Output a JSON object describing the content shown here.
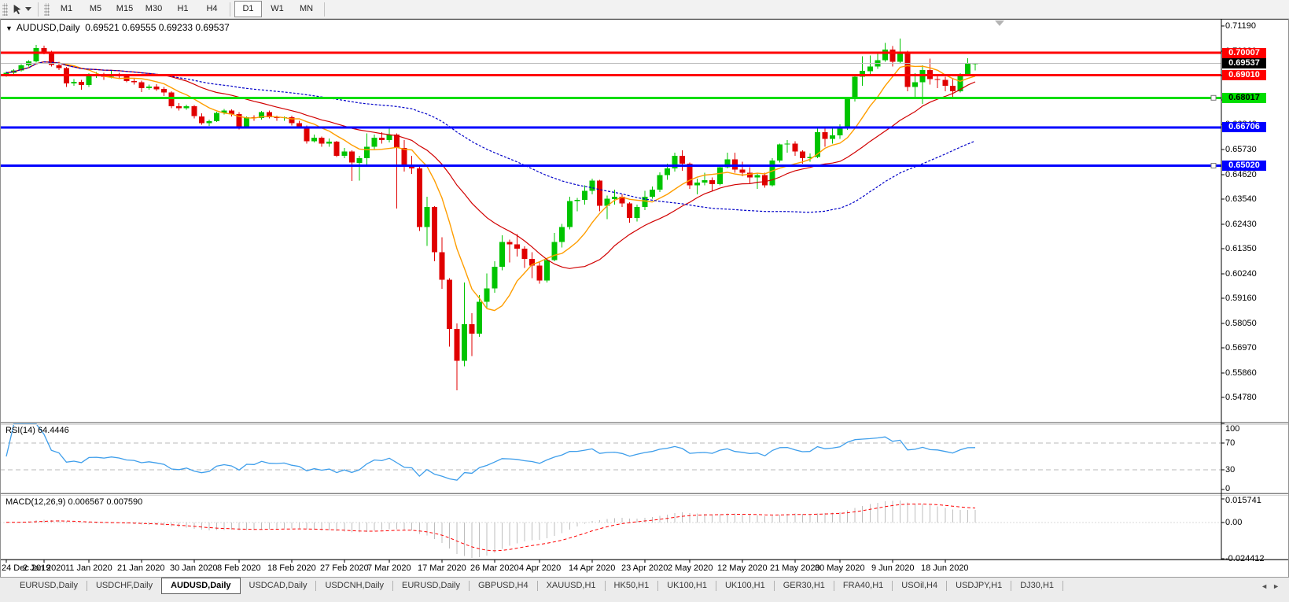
{
  "toolbar": {
    "timeframes": [
      {
        "label": "M1"
      },
      {
        "label": "M5"
      },
      {
        "label": "M15"
      },
      {
        "label": "M30"
      },
      {
        "label": "H1"
      },
      {
        "label": "H4"
      },
      {
        "label": "D1"
      },
      {
        "label": "W1"
      },
      {
        "label": "MN"
      }
    ],
    "active_timeframe": "D1"
  },
  "chart": {
    "title_symbol": "AUDUSD,Daily",
    "title_ohlc": "0.69521 0.69555 0.69233 0.69537",
    "menu_icon": "▼",
    "up_color": "#00C400",
    "down_color": "#E00000",
    "current_price": {
      "value": 0.69537,
      "label": "0.69537",
      "box_color": "#000000",
      "text_color": "#FFFFFF",
      "line_color": "#BBBBBB"
    },
    "hlines": [
      {
        "value": 0.70007,
        "label": "0.70007",
        "color": "#FF0000",
        "text_color": "#FFFFFF",
        "thickness": 3,
        "handle": false
      },
      {
        "value": 0.6901,
        "label": "0.69010",
        "color": "#FF0000",
        "text_color": "#FFFFFF",
        "thickness": 3,
        "handle": false
      },
      {
        "value": 0.68017,
        "label": "0.68017",
        "color": "#00DD00",
        "text_color": "#000000",
        "thickness": 3,
        "handle": true
      },
      {
        "value": 0.66706,
        "label": "0.66706",
        "color": "#0000FF",
        "text_color": "#FFFFFF",
        "thickness": 3,
        "handle": false
      },
      {
        "value": 0.6502,
        "label": "0.65020",
        "color": "#0000FF",
        "text_color": "#FFFFFF",
        "thickness": 3,
        "handle": true
      }
    ],
    "price_ticks": [
      {
        "value": 0.7119,
        "label": "0.71190"
      },
      {
        "value": 0.7008,
        "label": "0.70080"
      },
      {
        "value": 0.69,
        "label": "0.69000"
      },
      {
        "value": 0.6792,
        "label": "0.67920"
      },
      {
        "value": 0.6684,
        "label": "0.66840"
      },
      {
        "value": 0.6573,
        "label": "0.65730"
      },
      {
        "value": 0.6462,
        "label": "0.64620"
      },
      {
        "value": 0.6354,
        "label": "0.63540"
      },
      {
        "value": 0.6243,
        "label": "0.62430"
      },
      {
        "value": 0.6135,
        "label": "0.61350"
      },
      {
        "value": 0.6024,
        "label": "0.60240"
      },
      {
        "value": 0.5916,
        "label": "0.59160"
      },
      {
        "value": 0.5805,
        "label": "0.58050"
      },
      {
        "value": 0.5697,
        "label": "0.56970"
      },
      {
        "value": 0.5586,
        "label": "0.55860"
      },
      {
        "value": 0.5478,
        "label": "0.54780"
      }
    ]
  },
  "chart_data": {
    "type": "candlestick",
    "symbol": "AUDUSD",
    "timeframe": "Daily",
    "price_range": {
      "axis_top": 0.7119,
      "axis_bottom": 0.5478
    },
    "moving_averages": [
      {
        "name": "fast",
        "period": 8,
        "color": "#FF9E00",
        "dash": ""
      },
      {
        "name": "medium",
        "period": 21,
        "color": "#D10000",
        "dash": ""
      },
      {
        "name": "slow",
        "period": 55,
        "color": "#0000C8",
        "dash": "3 2"
      }
    ],
    "date_ticks": [
      {
        "bar": 0,
        "label": "24 Dec 2019"
      },
      {
        "bar": 5,
        "label": "2 Jan 2020"
      },
      {
        "bar": 11,
        "label": "11 Jan 2020"
      },
      {
        "bar": 18,
        "label": "21 Jan 2020"
      },
      {
        "bar": 25,
        "label": "30 Jan 2020"
      },
      {
        "bar": 31,
        "label": "8 Feb 2020"
      },
      {
        "bar": 38,
        "label": "18 Feb 2020"
      },
      {
        "bar": 45,
        "label": "27 Feb 2020"
      },
      {
        "bar": 51,
        "label": "7 Mar 2020"
      },
      {
        "bar": 58,
        "label": "17 Mar 2020"
      },
      {
        "bar": 65,
        "label": "26 Mar 2020"
      },
      {
        "bar": 71,
        "label": "4 Apr 2020"
      },
      {
        "bar": 78,
        "label": "14 Apr 2020"
      },
      {
        "bar": 85,
        "label": "23 Apr 2020"
      },
      {
        "bar": 91,
        "label": "2 May 2020"
      },
      {
        "bar": 98,
        "label": "12 May 2020"
      },
      {
        "bar": 105,
        "label": "21 May 2020"
      },
      {
        "bar": 111,
        "label": "30 May 2020"
      },
      {
        "bar": 118,
        "label": "9 Jun 2020"
      },
      {
        "bar": 125,
        "label": "18 Jun 2020"
      }
    ],
    "candles": [
      [
        0.69,
        0.6917,
        0.6895,
        0.6912
      ],
      [
        0.6912,
        0.6928,
        0.6905,
        0.6922
      ],
      [
        0.6922,
        0.695,
        0.6918,
        0.6945
      ],
      [
        0.6945,
        0.6968,
        0.694,
        0.6962
      ],
      [
        0.6962,
        0.7035,
        0.6958,
        0.7021
      ],
      [
        0.7021,
        0.7032,
        0.6993,
        0.7
      ],
      [
        0.7,
        0.701,
        0.694,
        0.6946
      ],
      [
        0.6946,
        0.696,
        0.6925,
        0.6933
      ],
      [
        0.6933,
        0.6938,
        0.6849,
        0.6866
      ],
      [
        0.6866,
        0.6885,
        0.6855,
        0.6873
      ],
      [
        0.6873,
        0.688,
        0.6838,
        0.6858
      ],
      [
        0.6858,
        0.691,
        0.685,
        0.6901
      ],
      [
        0.6901,
        0.6915,
        0.689,
        0.6903
      ],
      [
        0.6903,
        0.6912,
        0.688,
        0.6895
      ],
      [
        0.6895,
        0.692,
        0.6888,
        0.6906
      ],
      [
        0.6906,
        0.6913,
        0.6885,
        0.6896
      ],
      [
        0.6896,
        0.6905,
        0.687,
        0.6875
      ],
      [
        0.6875,
        0.6888,
        0.686,
        0.687
      ],
      [
        0.687,
        0.6878,
        0.6827,
        0.6845
      ],
      [
        0.6845,
        0.686,
        0.6838,
        0.6852
      ],
      [
        0.6852,
        0.6862,
        0.6832,
        0.684
      ],
      [
        0.684,
        0.685,
        0.681,
        0.6825
      ],
      [
        0.6825,
        0.683,
        0.6755,
        0.6765
      ],
      [
        0.6765,
        0.6778,
        0.6745,
        0.6755
      ],
      [
        0.6755,
        0.6772,
        0.6748,
        0.6765
      ],
      [
        0.6765,
        0.677,
        0.671,
        0.672
      ],
      [
        0.672,
        0.6733,
        0.6682,
        0.669
      ],
      [
        0.669,
        0.6705,
        0.6678,
        0.6698
      ],
      [
        0.6698,
        0.674,
        0.6695,
        0.6735
      ],
      [
        0.6735,
        0.6752,
        0.6728,
        0.6745
      ],
      [
        0.6745,
        0.675,
        0.672,
        0.673
      ],
      [
        0.673,
        0.6738,
        0.6662,
        0.667
      ],
      [
        0.667,
        0.672,
        0.6665,
        0.6715
      ],
      [
        0.6715,
        0.6725,
        0.67,
        0.6712
      ],
      [
        0.6712,
        0.6743,
        0.6705,
        0.6738
      ],
      [
        0.6738,
        0.6745,
        0.671,
        0.6715
      ],
      [
        0.6715,
        0.6722,
        0.67,
        0.6712
      ],
      [
        0.6712,
        0.672,
        0.67,
        0.6716
      ],
      [
        0.6716,
        0.6722,
        0.668,
        0.669
      ],
      [
        0.669,
        0.67,
        0.6668,
        0.6675
      ],
      [
        0.6675,
        0.668,
        0.66,
        0.661
      ],
      [
        0.661,
        0.664,
        0.6605,
        0.6625
      ],
      [
        0.6625,
        0.663,
        0.6585,
        0.66
      ],
      [
        0.66,
        0.6622,
        0.6585,
        0.6608
      ],
      [
        0.6608,
        0.6612,
        0.654,
        0.6545
      ],
      [
        0.6545,
        0.658,
        0.6535,
        0.6565
      ],
      [
        0.6565,
        0.657,
        0.6434,
        0.6515
      ],
      [
        0.6515,
        0.6545,
        0.6435,
        0.6535
      ],
      [
        0.6535,
        0.6645,
        0.6505,
        0.6585
      ],
      [
        0.6585,
        0.664,
        0.6575,
        0.6625
      ],
      [
        0.6625,
        0.665,
        0.66,
        0.6615
      ],
      [
        0.6615,
        0.6665,
        0.6605,
        0.664
      ],
      [
        0.664,
        0.6645,
        0.6313,
        0.658
      ],
      [
        0.658,
        0.6615,
        0.6475,
        0.65
      ],
      [
        0.65,
        0.6545,
        0.6465,
        0.649
      ],
      [
        0.649,
        0.65,
        0.6213,
        0.623
      ],
      [
        0.623,
        0.6365,
        0.6148,
        0.632
      ],
      [
        0.632,
        0.6322,
        0.608,
        0.612
      ],
      [
        0.612,
        0.6185,
        0.5958,
        0.5998
      ],
      [
        0.5998,
        0.6005,
        0.5702,
        0.578
      ],
      [
        0.578,
        0.5805,
        0.551,
        0.564
      ],
      [
        0.564,
        0.5986,
        0.5615,
        0.5802
      ],
      [
        0.5802,
        0.585,
        0.566,
        0.576
      ],
      [
        0.576,
        0.593,
        0.5745,
        0.59
      ],
      [
        0.59,
        0.6025,
        0.587,
        0.596
      ],
      [
        0.596,
        0.608,
        0.594,
        0.6055
      ],
      [
        0.6055,
        0.6195,
        0.604,
        0.6165
      ],
      [
        0.6165,
        0.6175,
        0.6075,
        0.6155
      ],
      [
        0.6155,
        0.62,
        0.61,
        0.6135
      ],
      [
        0.6135,
        0.6145,
        0.605,
        0.609
      ],
      [
        0.609,
        0.612,
        0.6005,
        0.606
      ],
      [
        0.606,
        0.6075,
        0.598,
        0.5995
      ],
      [
        0.5995,
        0.6095,
        0.5985,
        0.6085
      ],
      [
        0.6085,
        0.6205,
        0.608,
        0.6165
      ],
      [
        0.6165,
        0.6245,
        0.614,
        0.623
      ],
      [
        0.623,
        0.6365,
        0.622,
        0.6345
      ],
      [
        0.6345,
        0.636,
        0.63,
        0.635
      ],
      [
        0.635,
        0.6415,
        0.633,
        0.639
      ],
      [
        0.639,
        0.6445,
        0.6375,
        0.6435
      ],
      [
        0.6435,
        0.644,
        0.63,
        0.6325
      ],
      [
        0.6325,
        0.637,
        0.6265,
        0.6355
      ],
      [
        0.6355,
        0.6395,
        0.633,
        0.6365
      ],
      [
        0.6365,
        0.6375,
        0.632,
        0.6335
      ],
      [
        0.6335,
        0.634,
        0.625,
        0.627
      ],
      [
        0.627,
        0.633,
        0.6255,
        0.632
      ],
      [
        0.632,
        0.639,
        0.6305,
        0.6365
      ],
      [
        0.6365,
        0.641,
        0.6355,
        0.6395
      ],
      [
        0.6395,
        0.6472,
        0.6385,
        0.646
      ],
      [
        0.646,
        0.651,
        0.644,
        0.649
      ],
      [
        0.649,
        0.656,
        0.6475,
        0.6545
      ],
      [
        0.6545,
        0.657,
        0.648,
        0.651
      ],
      [
        0.651,
        0.6515,
        0.64,
        0.6415
      ],
      [
        0.6415,
        0.6445,
        0.6375,
        0.6428
      ],
      [
        0.6428,
        0.647,
        0.6415,
        0.6437
      ],
      [
        0.6437,
        0.645,
        0.639,
        0.642
      ],
      [
        0.642,
        0.6505,
        0.6415,
        0.6495
      ],
      [
        0.6495,
        0.656,
        0.649,
        0.653
      ],
      [
        0.653,
        0.656,
        0.647,
        0.6485
      ],
      [
        0.6485,
        0.652,
        0.6455,
        0.647
      ],
      [
        0.647,
        0.6495,
        0.642,
        0.645
      ],
      [
        0.645,
        0.647,
        0.64,
        0.646
      ],
      [
        0.646,
        0.647,
        0.6405,
        0.6415
      ],
      [
        0.6415,
        0.6535,
        0.641,
        0.6525
      ],
      [
        0.6525,
        0.66,
        0.6515,
        0.6595
      ],
      [
        0.6595,
        0.6615,
        0.656,
        0.66
      ],
      [
        0.66,
        0.661,
        0.6545,
        0.6565
      ],
      [
        0.6565,
        0.657,
        0.651,
        0.6535
      ],
      [
        0.6535,
        0.6555,
        0.652,
        0.654
      ],
      [
        0.654,
        0.6675,
        0.6535,
        0.665
      ],
      [
        0.665,
        0.6665,
        0.6585,
        0.662
      ],
      [
        0.662,
        0.6665,
        0.66,
        0.6635
      ],
      [
        0.6635,
        0.6685,
        0.662,
        0.6665
      ],
      [
        0.6665,
        0.68,
        0.666,
        0.6795
      ],
      [
        0.6795,
        0.69,
        0.6785,
        0.6895
      ],
      [
        0.6895,
        0.6985,
        0.6855,
        0.692
      ],
      [
        0.692,
        0.6988,
        0.6905,
        0.694
      ],
      [
        0.694,
        0.6995,
        0.693,
        0.6968
      ],
      [
        0.6968,
        0.7045,
        0.696,
        0.7015
      ],
      [
        0.7015,
        0.703,
        0.694,
        0.696
      ],
      [
        0.696,
        0.7064,
        0.6955,
        0.7
      ],
      [
        0.7,
        0.701,
        0.683,
        0.685
      ],
      [
        0.685,
        0.691,
        0.68,
        0.687
      ],
      [
        0.687,
        0.6945,
        0.6775,
        0.6925
      ],
      [
        0.6925,
        0.6975,
        0.686,
        0.6885
      ],
      [
        0.6885,
        0.6905,
        0.6845,
        0.688
      ],
      [
        0.688,
        0.6895,
        0.683,
        0.6855
      ],
      [
        0.6855,
        0.6885,
        0.68,
        0.683
      ],
      [
        0.683,
        0.691,
        0.6825,
        0.69
      ],
      [
        0.69,
        0.6977,
        0.6896,
        0.6952
      ],
      [
        0.69521,
        0.69555,
        0.69233,
        0.69537
      ]
    ]
  },
  "rsi": {
    "label": "RSI(14) 64.4446",
    "period": 14,
    "line_color": "#3E9EEB",
    "levels": [
      {
        "value": 100,
        "label": "100",
        "dashed": false
      },
      {
        "value": 70,
        "label": "70",
        "dashed": true
      },
      {
        "value": 30,
        "label": "30",
        "dashed": true
      },
      {
        "value": 0,
        "label": "0",
        "dashed": false
      }
    ]
  },
  "macd": {
    "label": "MACD(12,26,9) 0.006567 0.007590",
    "fast": 12,
    "slow": 26,
    "signal": 9,
    "histogram_color": "#BDBDBD",
    "signal_color": "#FF0000",
    "axis": [
      {
        "value": 0.015741,
        "label": "0.015741"
      },
      {
        "value": 0.0,
        "label": "0.00"
      },
      {
        "value": -0.024412,
        "label": "-0.024412"
      }
    ]
  },
  "tabs": {
    "active_index": 2,
    "items": [
      {
        "label": "EURUSD,Daily"
      },
      {
        "label": "USDCHF,Daily"
      },
      {
        "label": "AUDUSD,Daily"
      },
      {
        "label": "USDCAD,Daily"
      },
      {
        "label": "USDCNH,Daily"
      },
      {
        "label": "EURUSD,Daily"
      },
      {
        "label": "GBPUSD,H4"
      },
      {
        "label": "XAUUSD,H1"
      },
      {
        "label": "HK50,H1"
      },
      {
        "label": "UK100,H1"
      },
      {
        "label": "UK100,H1"
      },
      {
        "label": "GER30,H1"
      },
      {
        "label": "FRA40,H1"
      },
      {
        "label": "USOil,H4"
      },
      {
        "label": "USDJPY,H1"
      },
      {
        "label": "DJ30,H1"
      }
    ],
    "scroll_left": "◄",
    "scroll_right": "►"
  }
}
